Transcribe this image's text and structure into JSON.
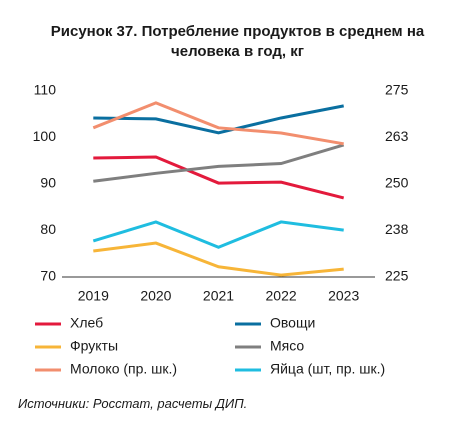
{
  "chart_data": {
    "type": "line",
    "title": "Рисунок 37. Потребление продуктов в среднем на человека в год, кг",
    "source": "Источники: Росстат, расчеты ДИП.",
    "categories": [
      "2019",
      "2020",
      "2021",
      "2022",
      "2023"
    ],
    "ylim": [
      70,
      110
    ],
    "yticks": [
      70,
      80,
      90,
      100,
      110
    ],
    "y2lim": [
      225,
      275
    ],
    "y2ticks": [
      225,
      {
        "value": 237.5,
        "label": "238"
      },
      250,
      {
        "value": 262.5,
        "label": "263"
      },
      275
    ],
    "series": [
      {
        "name": "Хлеб",
        "color": "#e31a3c",
        "values": [
          95.6,
          95.8,
          90.2,
          90.4,
          87.0
        ]
      },
      {
        "name": "Овощи",
        "color": "#0a6fa0",
        "values": [
          104.2,
          104.0,
          101.0,
          104.2,
          106.8
        ]
      },
      {
        "name": "Фрукты",
        "color": "#f7b538",
        "values": [
          75.6,
          77.3,
          72.2,
          70.4,
          71.7
        ]
      },
      {
        "name": "Мясо",
        "color": "#7f7f7f",
        "values": [
          90.6,
          92.3,
          93.8,
          94.4,
          98.4
        ]
      },
      {
        "name": "Молоко (пр. шк.)",
        "color": "#f28e6e",
        "axis": "y2",
        "values": [
          265.1,
          271.8,
          265.1,
          263.7,
          260.8
        ]
      },
      {
        "name": "Яйца (шт, пр. шк.)",
        "color": "#1fbde0",
        "axis": "y2",
        "values": [
          234.7,
          239.8,
          233.0,
          239.8,
          237.6
        ]
      }
    ]
  }
}
